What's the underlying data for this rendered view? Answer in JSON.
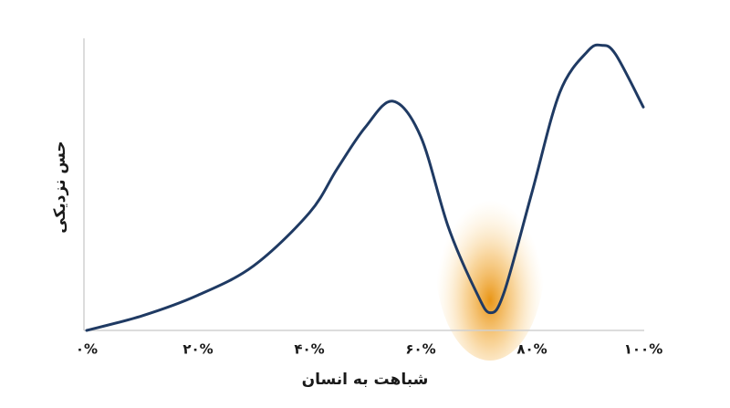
{
  "chart_data": {
    "type": "line",
    "x_label": "شباهت به انسان",
    "y_label": "حس نزدیکی",
    "x": [
      0,
      10,
      20,
      30,
      40,
      45,
      50,
      55,
      60,
      65,
      70,
      72.5,
      75,
      80,
      85,
      90,
      92.5,
      95,
      100
    ],
    "series": [
      {
        "color": "#1f3a63",
        "values": [
          0,
          5,
          12,
          22,
          40,
          55,
          69,
          78,
          66,
          35,
          13,
          6,
          13,
          47,
          81,
          95,
          97,
          94,
          76
        ]
      }
    ],
    "xlim": [
      0,
      100
    ],
    "ylim": [
      0,
      100
    ],
    "xticks": [
      {
        "value": 0,
        "label": "۰%"
      },
      {
        "value": 20,
        "label": "۲۰%"
      },
      {
        "value": 40,
        "label": "۴۰%"
      },
      {
        "value": 60,
        "label": "۶۰%"
      },
      {
        "value": 80,
        "label": "۸۰%"
      },
      {
        "value": 100,
        "label": "۱۰۰%"
      }
    ]
  }
}
